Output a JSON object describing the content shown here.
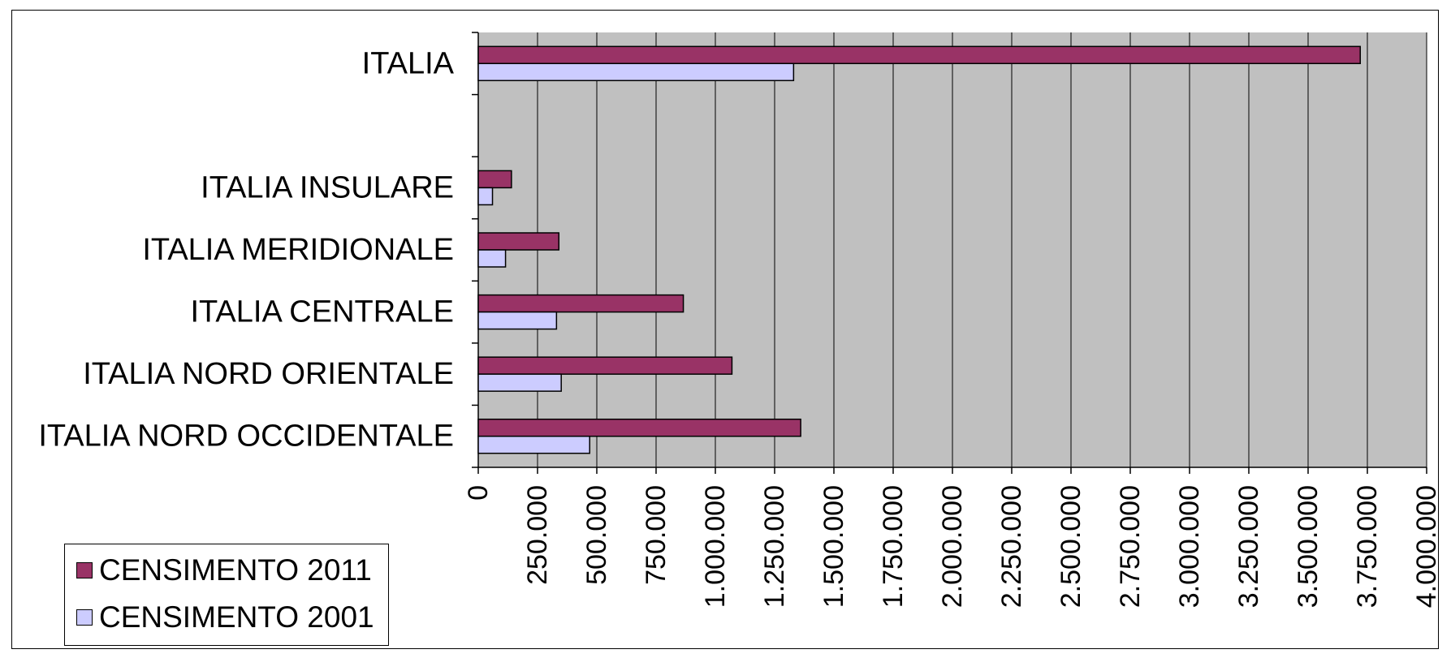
{
  "chart_data": {
    "type": "bar",
    "orientation": "horizontal",
    "categories": [
      "ITALIA NORD OCCIDENTALE",
      "ITALIA NORD ORIENTALE",
      "ITALIA CENTRALE",
      "ITALIA MERIDIONALE",
      "ITALIA INSULARE",
      "",
      "ITALIA"
    ],
    "series": [
      {
        "name": "CENSIMENTO 2011",
        "color": "#993366",
        "values": [
          1360000,
          1070000,
          865000,
          340000,
          140000,
          null,
          3720000
        ]
      },
      {
        "name": "CENSIMENTO 2001",
        "color": "#ccccff",
        "values": [
          470000,
          350000,
          330000,
          115000,
          60000,
          null,
          1330000
        ]
      }
    ],
    "xlim": [
      0,
      4000000
    ],
    "x_ticks": [
      0,
      250000,
      500000,
      750000,
      1000000,
      1250000,
      1500000,
      1750000,
      2000000,
      2250000,
      2500000,
      2750000,
      3000000,
      3250000,
      3500000,
      3750000,
      4000000
    ],
    "x_tick_labels": [
      "0",
      "250.000",
      "500.000",
      "750.000",
      "1.000.000",
      "1.250.000",
      "1.500.000",
      "1.750.000",
      "2.000.000",
      "2.250.000",
      "2.500.000",
      "2.750.000",
      "3.000.000",
      "3.250.000",
      "3.500.000",
      "3.750.000",
      "4.000.000"
    ],
    "title": "",
    "xlabel": "",
    "ylabel": "",
    "grid": "vertical",
    "plot_background": "#c0c0c0",
    "legend_position": "bottom-left"
  }
}
